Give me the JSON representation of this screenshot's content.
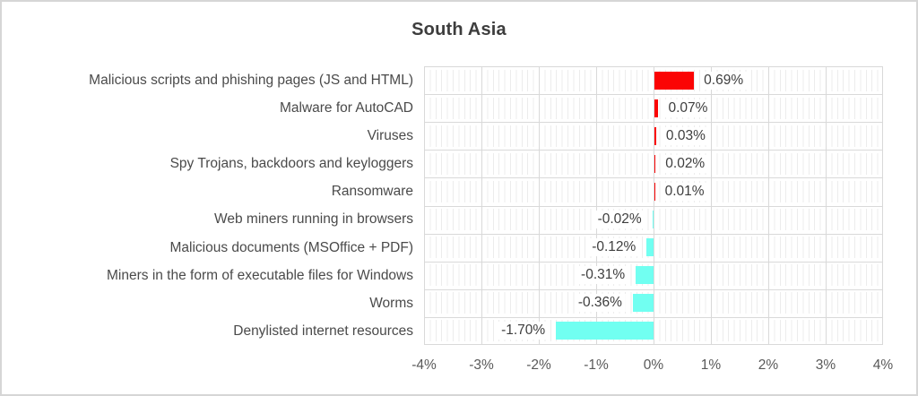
{
  "chart_data": {
    "type": "bar",
    "orientation": "horizontal",
    "title": "South Asia",
    "categories": [
      "Malicious scripts and phishing pages (JS and HTML)",
      "Malware for AutoCAD",
      "Viruses",
      "Spy Trojans, backdoors and keyloggers",
      "Ransomware",
      "Web miners running in browsers",
      "Malicious documents (MSOffice + PDF)",
      "Miners in the form of executable files for Windows",
      "Worms",
      "Denylisted internet resources"
    ],
    "values": [
      0.69,
      0.07,
      0.03,
      0.02,
      0.01,
      -0.02,
      -0.12,
      -0.31,
      -0.36,
      -1.7
    ],
    "value_labels": [
      "0.69%",
      "0.07%",
      "0.03%",
      "0.02%",
      "0.01%",
      "-0.02%",
      "-0.12%",
      "-0.31%",
      "-0.36%",
      "-1.70%"
    ],
    "xlim": [
      -4,
      4
    ],
    "x_tick_labels": [
      "-4%",
      "-3%",
      "-2%",
      "-1%",
      "0%",
      "1%",
      "2%",
      "3%",
      "4%"
    ],
    "grid": {
      "major_step_pct": 1,
      "minor_step_pct": 0.1,
      "horizontal_row_lines": true
    },
    "legend": "none",
    "colors": {
      "positive_bar": "#fb0404",
      "negative_bar": "#71fff1",
      "grid_major": "#d9d9d9",
      "grid_minor": "#ececec",
      "title_text": "#3d3d3d",
      "category_text": "#4a4a4a",
      "value_text": "#3e3e3e",
      "axis_text": "#595959",
      "frame_border": "#d6d6d6",
      "background": "#ffffff"
    }
  }
}
